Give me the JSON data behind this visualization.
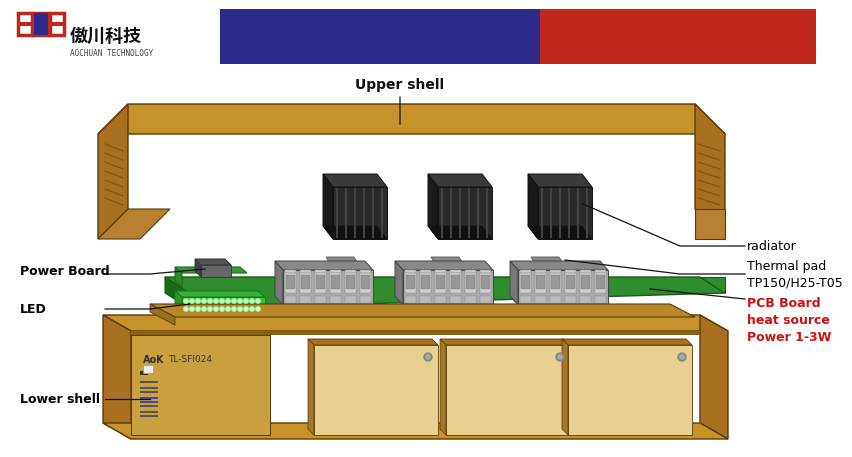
{
  "bg_color": "#ffffff",
  "header_blue": "#2b2b8c",
  "header_red": "#c0271a",
  "shell_top": "#c8922a",
  "shell_side": "#a87020",
  "shell_front": "#b88030",
  "shell_inner": "#8a6018",
  "pcb_top": "#2e8b2e",
  "pcb_side": "#1a6a1a",
  "rad_top": "#3a3a3a",
  "rad_side": "#222222",
  "rad_front": "#1a1a1a",
  "lower_inner": "#c8a040",
  "lower_port": "#e8d090",
  "labels": {
    "upper_shell": "Upper shell",
    "radiator": "radiator",
    "thermal_pad": "Thermal pad\nTP150/H25-T05",
    "power_board": "Power Board",
    "led": "LED",
    "pcb_board": "PCB Board\nheat source\nPower 1-3W",
    "lower_shell": "Lower shell"
  }
}
